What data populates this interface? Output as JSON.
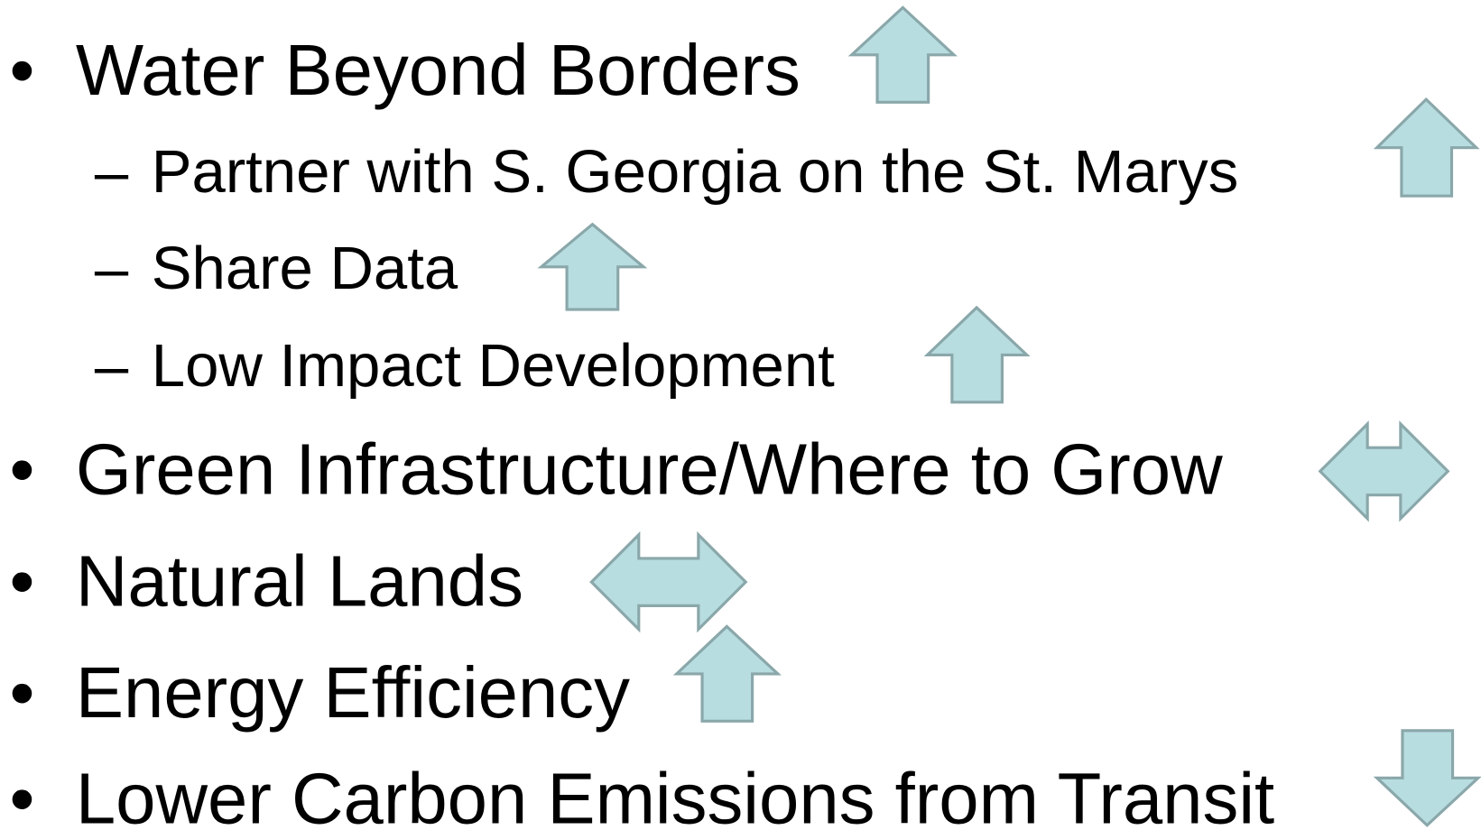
{
  "items": [
    {
      "marker": "•",
      "text": "Water Beyond Borders"
    },
    {
      "marker": "–",
      "text": "Partner with S. Georgia on the St. Marys"
    },
    {
      "marker": "–",
      "text": "Share Data"
    },
    {
      "marker": "–",
      "text": "Low Impact Development"
    },
    {
      "marker": "•",
      "text": "Green Infrastructure/Where to Grow"
    },
    {
      "marker": "•",
      "text": "Natural Lands"
    },
    {
      "marker": "•",
      "text": "Energy Efficiency"
    },
    {
      "marker": "•",
      "text": "Lower Carbon Emissions from Transit"
    }
  ]
}
